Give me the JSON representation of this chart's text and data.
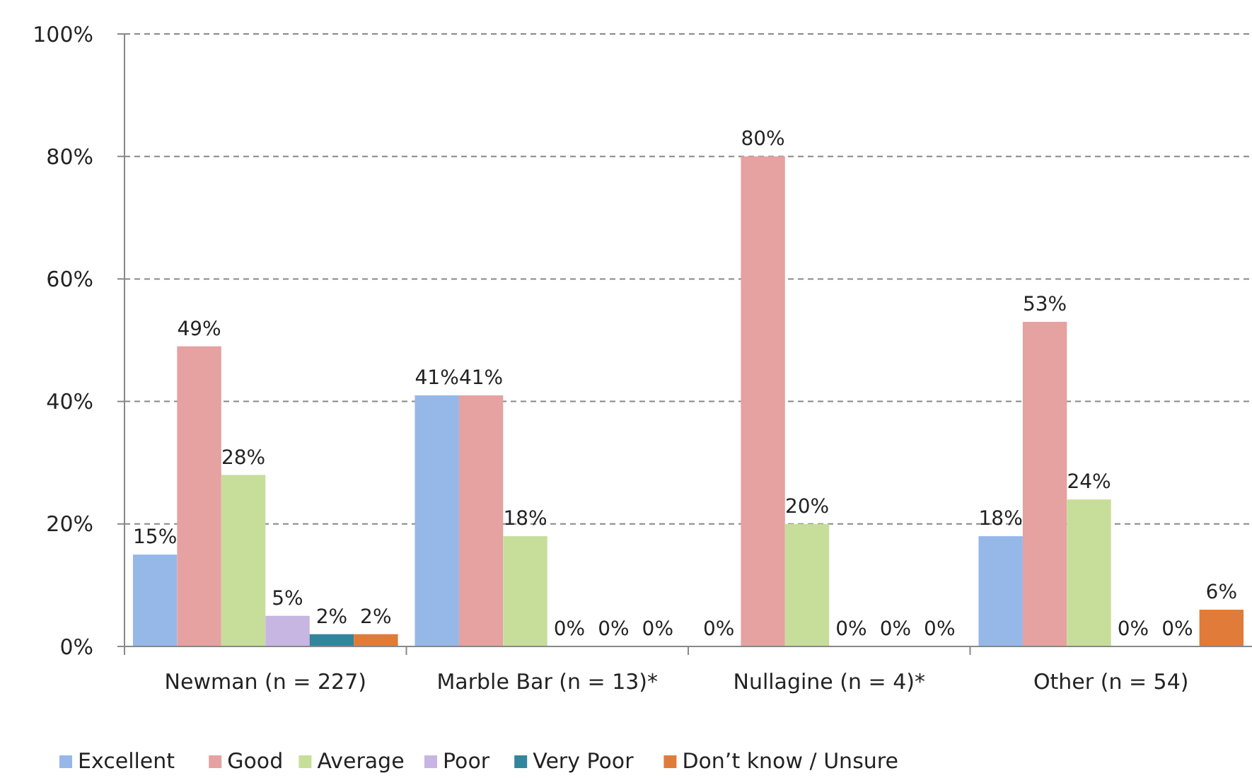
{
  "chart_data": {
    "type": "bar",
    "categories": [
      "Newman (n = 227)",
      "Marble Bar (n = 13)*",
      "Nullagine (n = 4)*",
      "Other (n = 54)"
    ],
    "series": [
      {
        "name": "Excellent",
        "color": "#95b8e8",
        "values": [
          15,
          41,
          0,
          18
        ],
        "value_labels": [
          "15%",
          "41%",
          "0%",
          "18%"
        ]
      },
      {
        "name": "Good",
        "color": "#e6a1a1",
        "values": [
          49,
          41,
          80,
          53
        ],
        "value_labels": [
          "49%",
          "41%",
          "80%",
          "53%"
        ]
      },
      {
        "name": "Average",
        "color": "#c6de9a",
        "values": [
          28,
          18,
          20,
          24
        ],
        "value_labels": [
          "28%",
          "18%",
          "20%",
          "24%"
        ]
      },
      {
        "name": "Poor",
        "color": "#c7b5e2",
        "values": [
          5,
          0,
          0,
          0
        ],
        "value_labels": [
          "5%",
          "0%",
          "0%",
          "0%"
        ]
      },
      {
        "name": "Very Poor",
        "color": "#31859c",
        "values": [
          2,
          0,
          0,
          0
        ],
        "value_labels": [
          "2%",
          "0%",
          "0%",
          "0%"
        ]
      },
      {
        "name": "Don’t know / Unsure",
        "color": "#e07b39",
        "values": [
          2,
          0,
          0,
          6
        ],
        "value_labels": [
          "2%",
          "0%",
          "0%",
          "6%"
        ]
      }
    ],
    "ylim": [
      0,
      100
    ],
    "yticks": [
      {
        "value": 0,
        "label": "0%"
      },
      {
        "value": 20,
        "label": "20%"
      },
      {
        "value": 40,
        "label": "40%"
      },
      {
        "value": 60,
        "label": "60%"
      },
      {
        "value": 80,
        "label": "80%"
      },
      {
        "value": 100,
        "label": "100%"
      }
    ],
    "grid": "y",
    "line_style": "dashed",
    "legend": "bottom"
  }
}
